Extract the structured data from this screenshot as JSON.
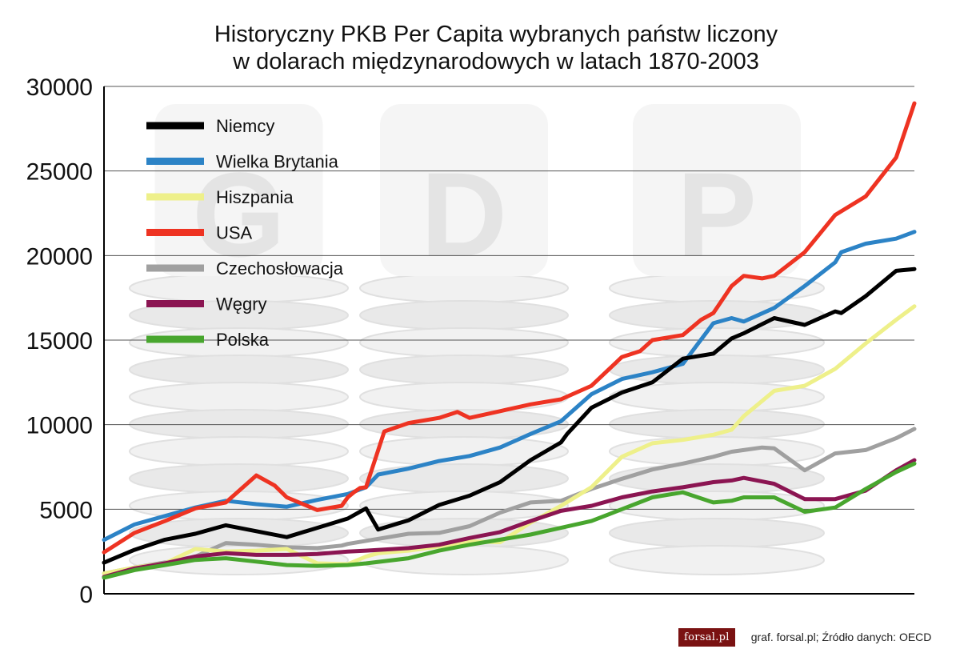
{
  "page": {
    "title_line1": "Historyczny PKB Per Capita wybranych państw liczony",
    "title_line2": "w dolarach międzynarodowych w latach 1870-2003",
    "footer_logo": "forsal.pl",
    "footer_credit": "graf. forsal.pl; Źródło danych: OECD"
  },
  "chart_data": {
    "type": "line",
    "title": "Historyczny PKB Per Capita wybranych państw liczony w dolarach międzynarodowych w latach 1870-2003",
    "xlabel": "",
    "ylabel": "",
    "xlim": [
      1870,
      2003
    ],
    "ylim": [
      0,
      30000
    ],
    "yticks": [
      0,
      5000,
      10000,
      15000,
      20000,
      25000,
      30000
    ],
    "xticks_shown": false,
    "grid": "horizontal",
    "legend_position": "top-left",
    "background_image": "GDP letter cubes on coin stacks (faded)",
    "series": [
      {
        "name": "Niemcy",
        "color": "#000000",
        "x": [
          1870,
          1875,
          1880,
          1885,
          1890,
          1895,
          1900,
          1905,
          1910,
          1913,
          1915,
          1920,
          1925,
          1930,
          1935,
          1940,
          1945,
          1946,
          1950,
          1955,
          1960,
          1965,
          1970,
          1973,
          1975,
          1980,
          1985,
          1990,
          1991,
          1995,
          2000,
          2003
        ],
        "y": [
          1840,
          2600,
          3200,
          3550,
          4050,
          3700,
          3350,
          3900,
          4450,
          5050,
          3800,
          4350,
          5250,
          5800,
          6600,
          7900,
          8950,
          9450,
          11000,
          11900,
          12500,
          13900,
          14200,
          15100,
          15400,
          16300,
          15900,
          16700,
          16600,
          17600,
          19100,
          19200
        ]
      },
      {
        "name": "Wielka Brytania",
        "color": "#2c83c6",
        "x": [
          1870,
          1875,
          1880,
          1885,
          1890,
          1895,
          1900,
          1905,
          1910,
          1913,
          1915,
          1920,
          1925,
          1930,
          1935,
          1940,
          1945,
          1950,
          1955,
          1960,
          1965,
          1970,
          1973,
          1975,
          1980,
          1985,
          1990,
          1991,
          1995,
          2000,
          2003
        ],
        "y": [
          3190,
          4100,
          4600,
          5100,
          5500,
          5300,
          5150,
          5550,
          5900,
          6300,
          7050,
          7400,
          7850,
          8150,
          8650,
          9450,
          10200,
          11800,
          12700,
          13100,
          13600,
          16000,
          16300,
          16100,
          16900,
          18200,
          19600,
          20200,
          20700,
          21000,
          21400
        ]
      },
      {
        "name": "Hiszpania",
        "color": "#eef08a",
        "x": [
          1870,
          1875,
          1880,
          1885,
          1890,
          1895,
          1900,
          1905,
          1910,
          1913,
          1915,
          1920,
          1925,
          1930,
          1935,
          1940,
          1945,
          1950,
          1955,
          1960,
          1965,
          1970,
          1973,
          1975,
          1980,
          1985,
          1990,
          1995,
          2000,
          2003
        ],
        "y": [
          1200,
          1550,
          1800,
          2650,
          2500,
          2550,
          2650,
          1800,
          1750,
          2200,
          2400,
          2550,
          2800,
          3100,
          3050,
          4200,
          5200,
          6300,
          8100,
          8900,
          9100,
          9400,
          9700,
          10500,
          12000,
          12300,
          13300,
          14800,
          16200,
          17000
        ]
      },
      {
        "name": "USA",
        "color": "#ee3322",
        "x": [
          1870,
          1875,
          1880,
          1885,
          1890,
          1895,
          1898,
          1900,
          1905,
          1909,
          1910,
          1911,
          1912,
          1913,
          1916,
          1920,
          1925,
          1928,
          1930,
          1935,
          1940,
          1945,
          1950,
          1955,
          1958,
          1960,
          1965,
          1968,
          1970,
          1973,
          1975,
          1978,
          1980,
          1985,
          1990,
          1995,
          2000,
          2003
        ],
        "y": [
          2450,
          3600,
          4300,
          5050,
          5400,
          7000,
          6400,
          5700,
          4950,
          5200,
          5700,
          6000,
          6250,
          6300,
          9600,
          10100,
          10400,
          10750,
          10400,
          10800,
          11200,
          11500,
          12300,
          14000,
          14350,
          15000,
          15300,
          16200,
          16600,
          18200,
          18800,
          18650,
          18800,
          20200,
          22400,
          23500,
          25800,
          29000
        ]
      },
      {
        "name": "Czechosłowacja",
        "color": "#a0a0a0",
        "x": [
          1870,
          1875,
          1880,
          1885,
          1890,
          1895,
          1900,
          1905,
          1909,
          1910,
          1920,
          1925,
          1930,
          1935,
          1940,
          1945,
          1950,
          1955,
          1960,
          1965,
          1970,
          1973,
          1975,
          1978,
          1980,
          1985,
          1990,
          1995,
          2000,
          2003
        ],
        "y": [
          1200,
          1550,
          1850,
          2200,
          3000,
          2900,
          2750,
          2700,
          2850,
          2950,
          3550,
          3600,
          4000,
          4800,
          5400,
          5500,
          6200,
          6800,
          7350,
          7700,
          8100,
          8400,
          8500,
          8650,
          8600,
          7300,
          8300,
          8500,
          9200,
          9750
        ]
      },
      {
        "name": "Węgry",
        "color": "#8b1552",
        "x": [
          1870,
          1875,
          1880,
          1885,
          1890,
          1895,
          1900,
          1905,
          1910,
          1913,
          1920,
          1925,
          1930,
          1935,
          1940,
          1945,
          1950,
          1955,
          1960,
          1965,
          1970,
          1973,
          1975,
          1980,
          1985,
          1990,
          1995,
          2000,
          2003
        ],
        "y": [
          1000,
          1500,
          1800,
          2200,
          2400,
          2300,
          2300,
          2350,
          2500,
          2550,
          2700,
          2900,
          3300,
          3650,
          4300,
          4900,
          5200,
          5700,
          6050,
          6300,
          6600,
          6700,
          6850,
          6500,
          5600,
          5600,
          6100,
          7300,
          7900
        ]
      },
      {
        "name": "Polska",
        "color": "#48a62e",
        "x": [
          1870,
          1875,
          1880,
          1885,
          1890,
          1895,
          1900,
          1905,
          1910,
          1913,
          1920,
          1925,
          1930,
          1935,
          1940,
          1945,
          1950,
          1955,
          1960,
          1965,
          1970,
          1973,
          1975,
          1980,
          1985,
          1990,
          1995,
          2000,
          2003
        ],
        "y": [
          950,
          1400,
          1700,
          2000,
          2100,
          1900,
          1700,
          1650,
          1700,
          1800,
          2100,
          2550,
          2900,
          3200,
          3500,
          3900,
          4300,
          5000,
          5700,
          6000,
          5400,
          5500,
          5700,
          5700,
          4850,
          5100,
          6200,
          7200,
          7700
        ]
      }
    ]
  }
}
